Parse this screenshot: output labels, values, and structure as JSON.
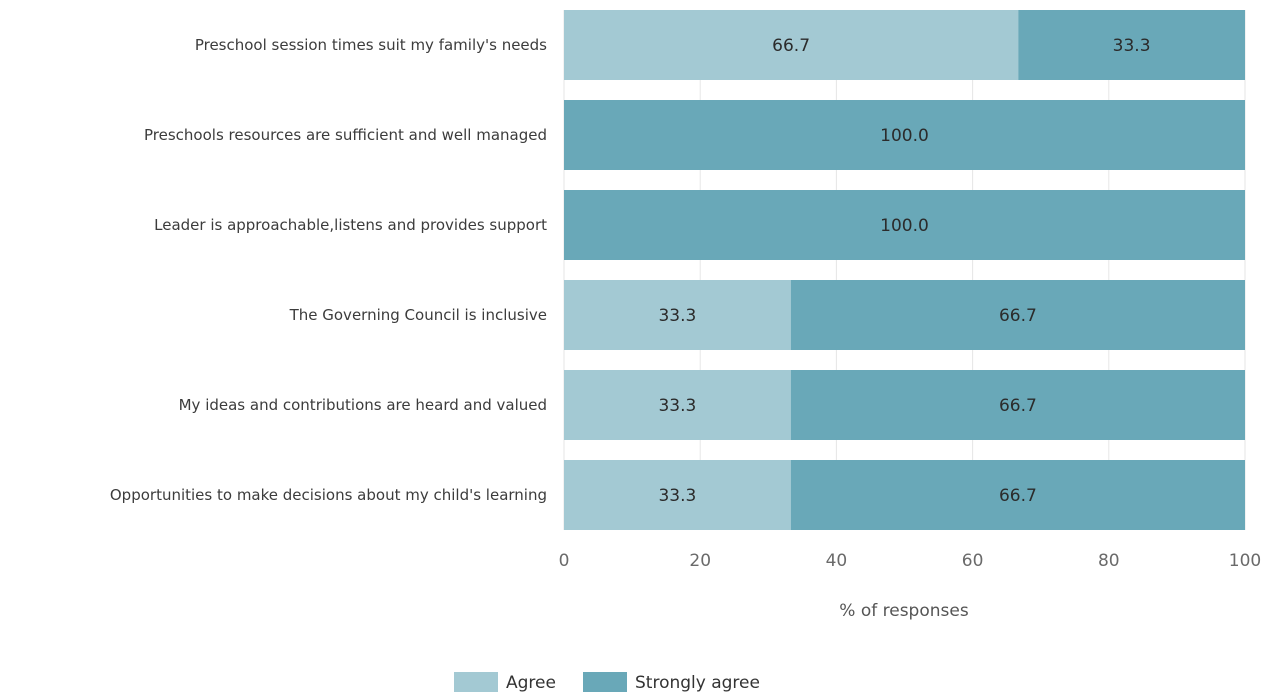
{
  "chart_data": {
    "type": "bar",
    "orientation": "horizontal",
    "stacked": true,
    "categories": [
      "Preschool session times suit my family's needs",
      "Preschools resources are sufficient and well managed",
      "Leader is approachable,listens and provides support",
      "The Governing Council is inclusive",
      "My ideas and contributions are heard and valued",
      "Opportunities to make decisions about my child's learning"
    ],
    "series": [
      {
        "name": "Agree",
        "color": "#a3c9d3",
        "values": [
          66.7,
          0,
          0,
          33.3,
          33.3,
          33.3
        ],
        "labels": [
          "66.7",
          "",
          "",
          "33.3",
          "33.3",
          "33.3"
        ]
      },
      {
        "name": "Strongly agree",
        "color": "#69a8b8",
        "values": [
          33.3,
          100,
          100,
          66.7,
          66.7,
          66.7
        ],
        "labels": [
          "33.3",
          "100.0",
          "100.0",
          "66.7",
          "66.7",
          "66.7"
        ]
      }
    ],
    "xlabel": "% of responses",
    "xlim": [
      0,
      100
    ],
    "xticks": [
      "0",
      "20",
      "40",
      "60",
      "80",
      "100"
    ],
    "grid": true,
    "legend_position": "bottom"
  }
}
